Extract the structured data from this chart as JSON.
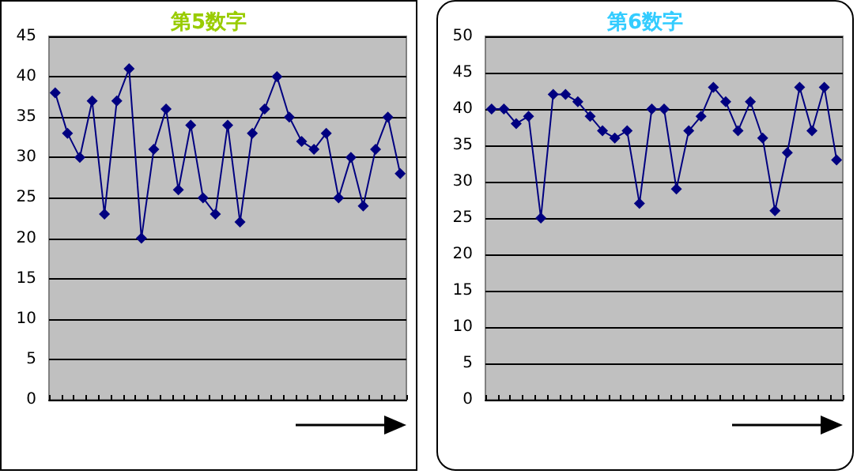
{
  "chart_data": [
    {
      "type": "line",
      "title": "第5数字",
      "categories": [
        null,
        null,
        null,
        null,
        null,
        null,
        null,
        null,
        null,
        null,
        null,
        null,
        null,
        null,
        null,
        null,
        null,
        null,
        null,
        null,
        null,
        null,
        null,
        null,
        null,
        null,
        null,
        null,
        null
      ],
      "series": [
        {
          "color": "#000080",
          "values": [
            38,
            33,
            30,
            37,
            23,
            37,
            41,
            20,
            31,
            36,
            26,
            34,
            25,
            23,
            34,
            22,
            33,
            36,
            40,
            35,
            32,
            31,
            33,
            25,
            30,
            24,
            31,
            35,
            28
          ]
        }
      ],
      "ylim": [
        0,
        45
      ],
      "yticks": [
        0,
        5,
        10,
        15,
        20,
        25,
        30,
        35,
        40,
        45
      ],
      "grid": "y",
      "marker": "diamond"
    },
    {
      "type": "line",
      "title": "第6数字",
      "categories": [
        null,
        null,
        null,
        null,
        null,
        null,
        null,
        null,
        null,
        null,
        null,
        null,
        null,
        null,
        null,
        null,
        null,
        null,
        null,
        null,
        null,
        null,
        null,
        null,
        null,
        null,
        null,
        null,
        null
      ],
      "series": [
        {
          "color": "#000080",
          "values": [
            40,
            40,
            38,
            39,
            25,
            42,
            42,
            41,
            39,
            37,
            36,
            37,
            27,
            40,
            40,
            29,
            37,
            39,
            43,
            41,
            37,
            41,
            36,
            26,
            34,
            43,
            37,
            43,
            33
          ]
        }
      ],
      "ylim": [
        0,
        50
      ],
      "yticks": [
        0,
        5,
        10,
        15,
        20,
        25,
        30,
        35,
        40,
        45,
        50
      ],
      "grid": "y",
      "marker": "diamond"
    }
  ]
}
